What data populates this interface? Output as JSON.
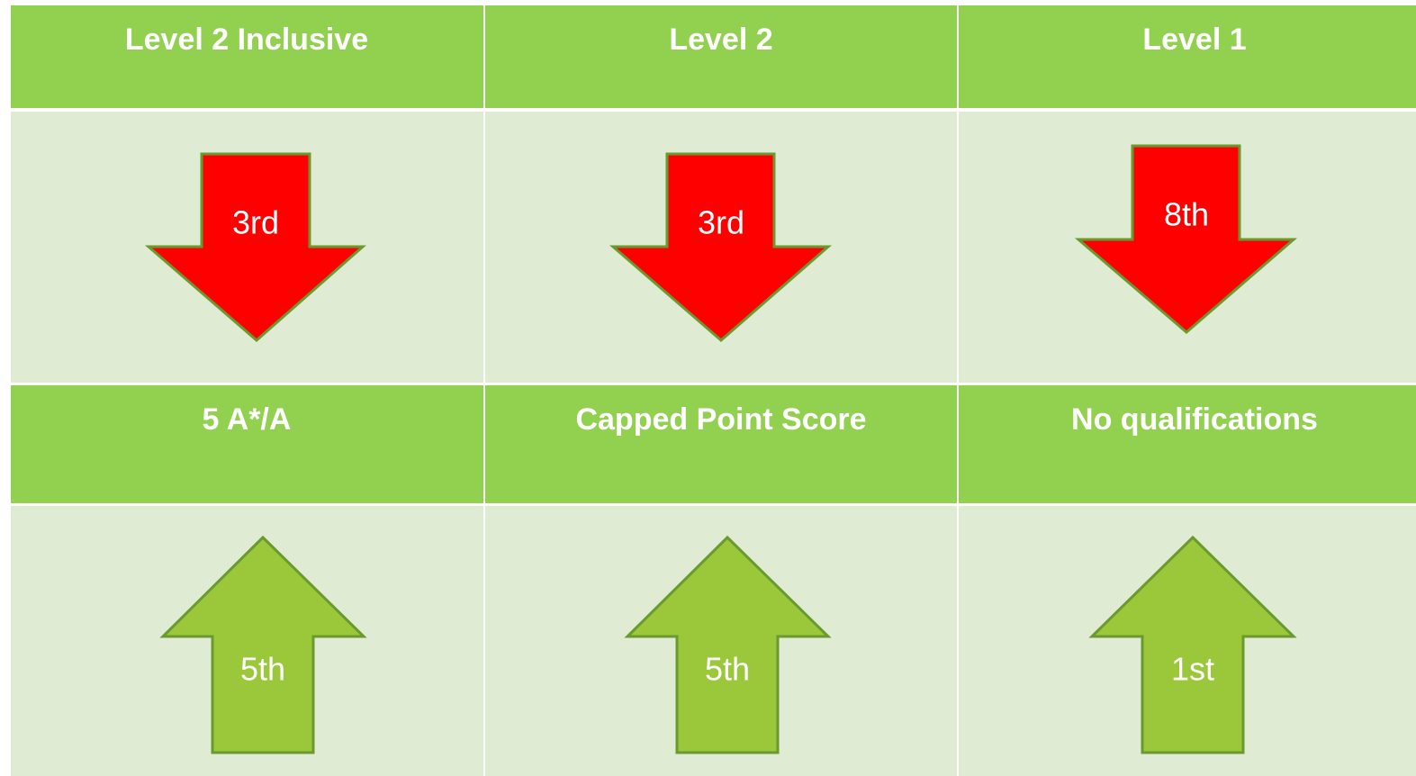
{
  "sections": [
    {
      "headers": [
        "Level 2 Inclusive",
        "Level 2",
        "Level 1"
      ],
      "labels": [
        "3rd",
        "3rd",
        "8th"
      ]
    },
    {
      "headers": [
        "5 A*/A",
        "Capped Point Score",
        "No qualifications"
      ],
      "labels": [
        "5th",
        "5th",
        "1st"
      ]
    }
  ]
}
